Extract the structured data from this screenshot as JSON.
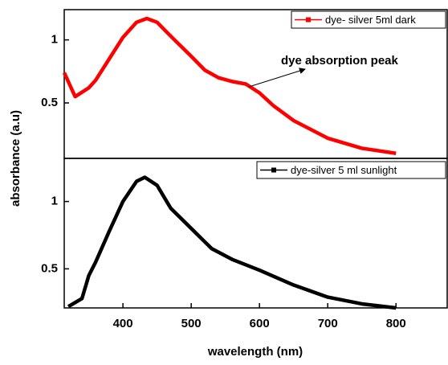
{
  "chart_data": [
    {
      "type": "line",
      "ylabel": "absorbance (a.u)",
      "annotation": "dye absorption peak",
      "xlim": [
        314,
        875
      ],
      "ylim": [
        0.06,
        1.24
      ],
      "yticks": [
        0.5,
        1.0
      ],
      "x": [
        314,
        330,
        350,
        360,
        380,
        400,
        420,
        435,
        450,
        470,
        500,
        520,
        540,
        560,
        580,
        600,
        620,
        650,
        700,
        750,
        800
      ],
      "series": [
        {
          "name": "dye- silver 5ml dark",
          "color": "#ff0000",
          "values": [
            0.74,
            0.55,
            0.62,
            0.68,
            0.85,
            1.02,
            1.14,
            1.17,
            1.14,
            1.03,
            0.87,
            0.76,
            0.7,
            0.67,
            0.65,
            0.58,
            0.48,
            0.36,
            0.22,
            0.14,
            0.1
          ]
        }
      ]
    },
    {
      "type": "line",
      "xlabel": "wavelength (nm)",
      "xlim": [
        314,
        875
      ],
      "ylim": [
        0.21,
        1.32
      ],
      "xticks": [
        400,
        500,
        600,
        700,
        800
      ],
      "yticks": [
        0.5,
        1.0
      ],
      "x": [
        320,
        340,
        350,
        360,
        380,
        400,
        420,
        432,
        450,
        470,
        500,
        530,
        560,
        600,
        650,
        700,
        750,
        800
      ],
      "series": [
        {
          "name": "dye-silver 5 ml sunlight",
          "color": "#000000",
          "values": [
            0.22,
            0.28,
            0.45,
            0.55,
            0.78,
            1.0,
            1.15,
            1.18,
            1.12,
            0.95,
            0.8,
            0.65,
            0.57,
            0.49,
            0.38,
            0.29,
            0.24,
            0.21
          ]
        }
      ]
    }
  ]
}
